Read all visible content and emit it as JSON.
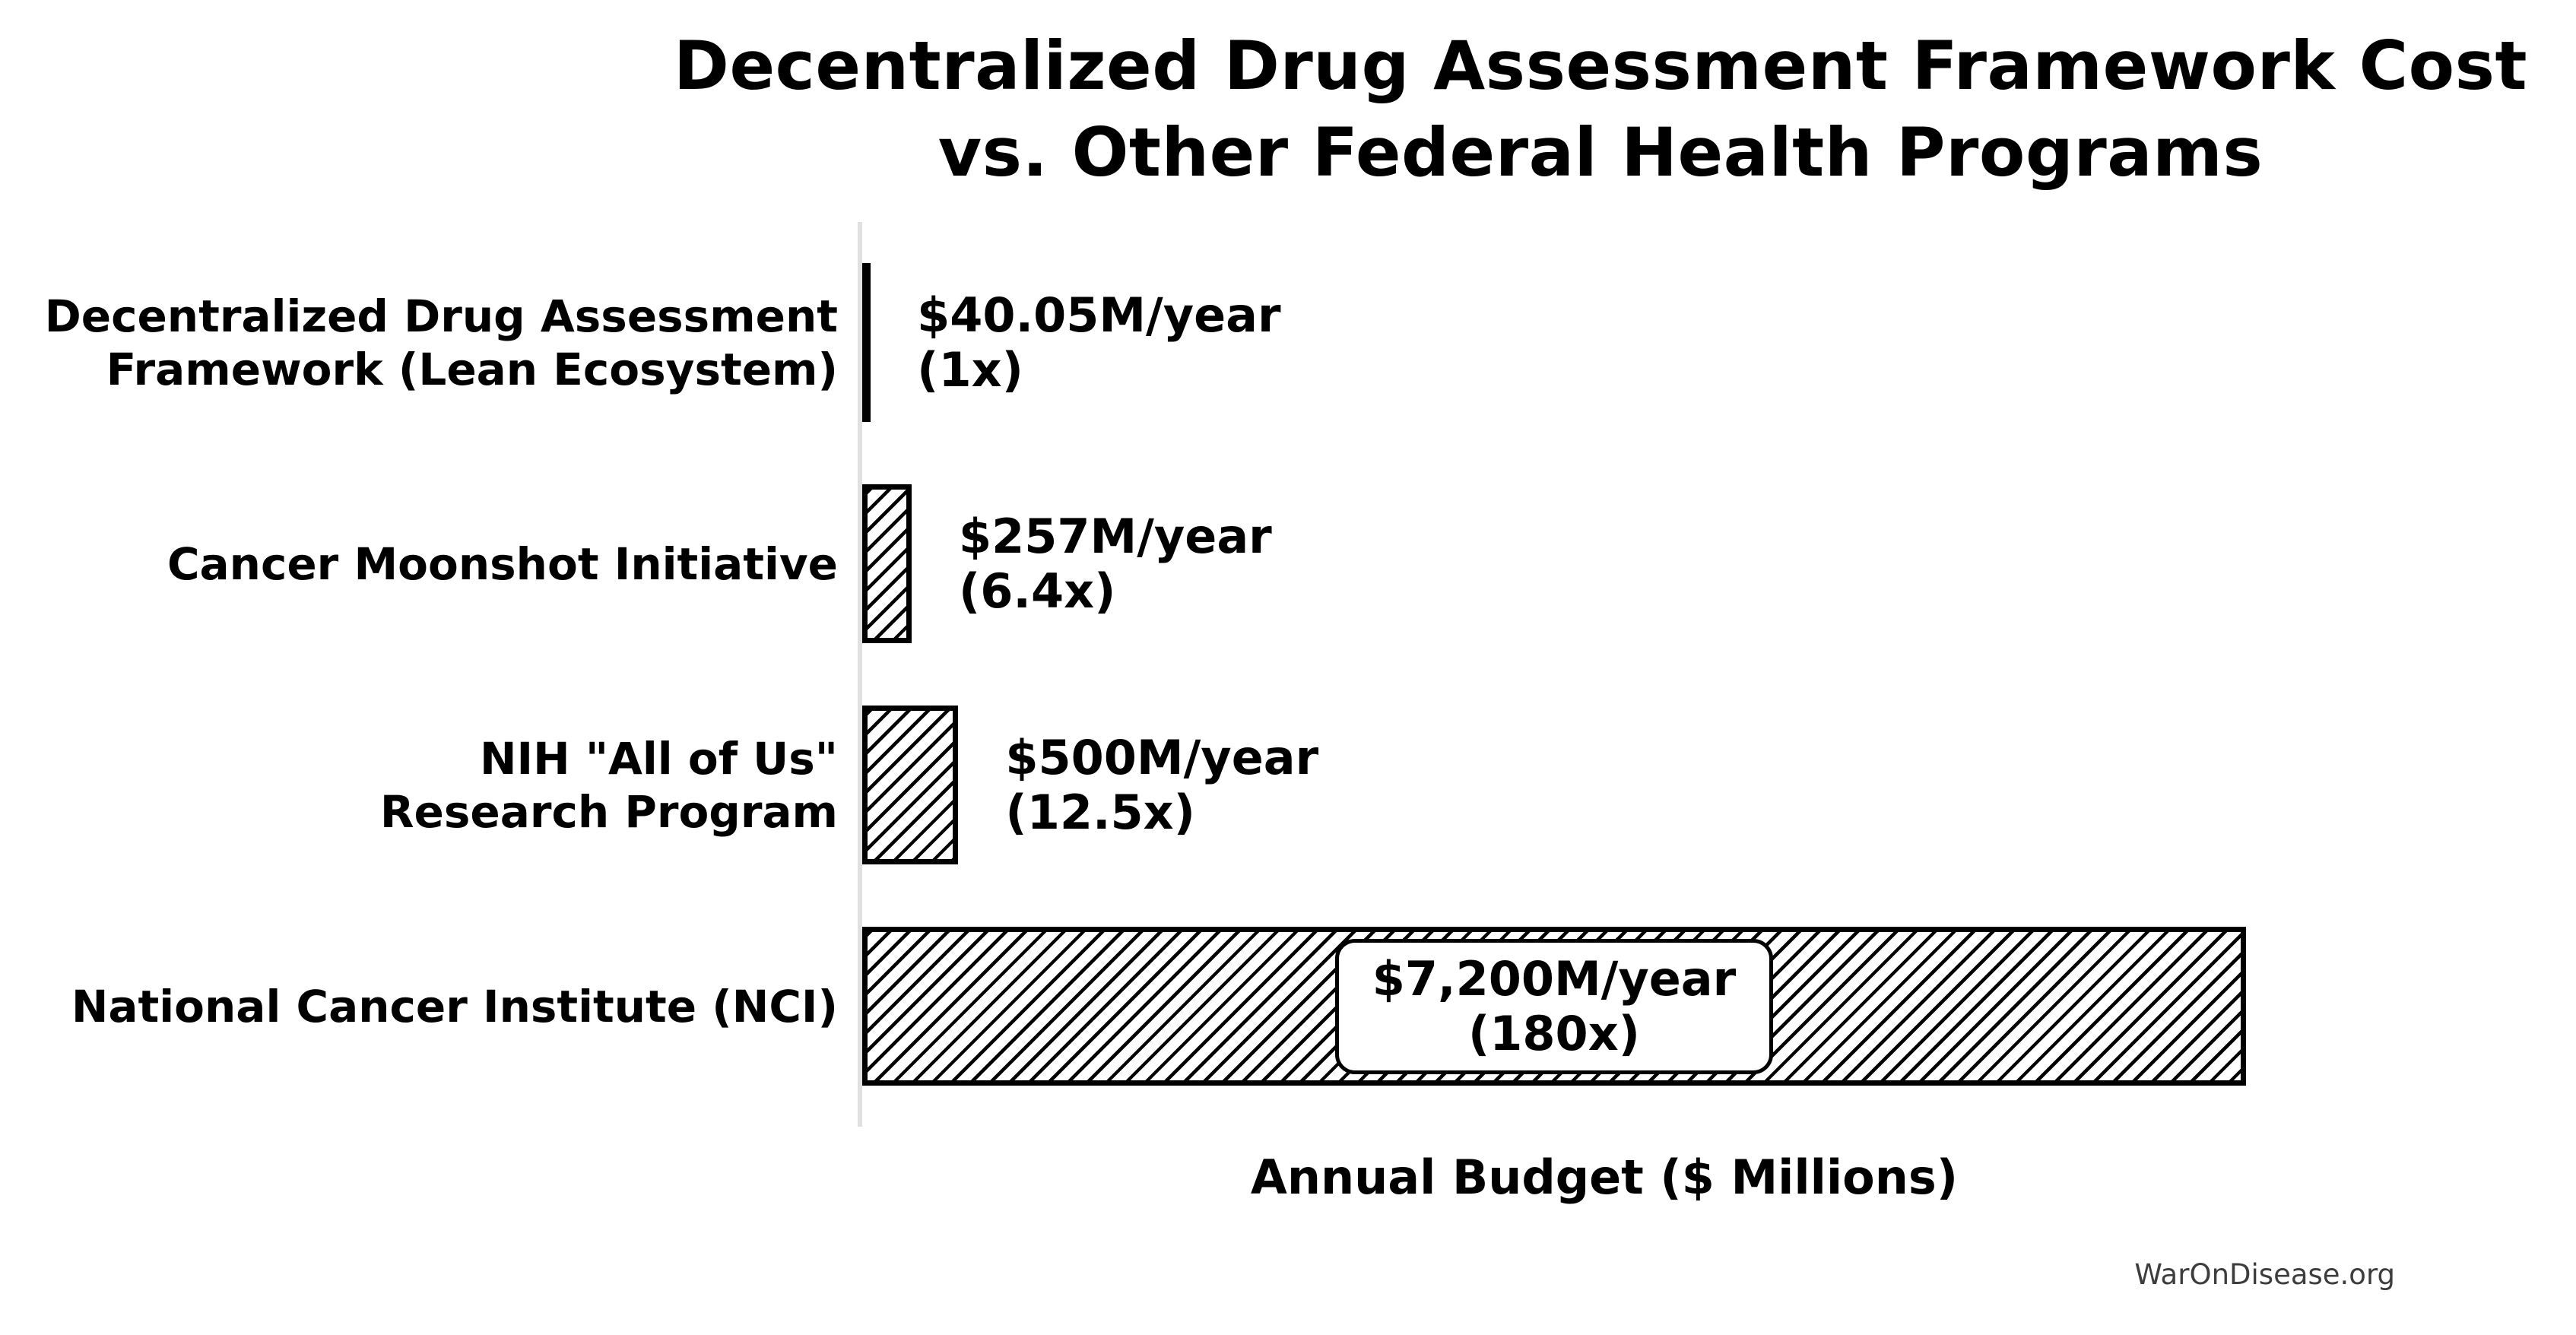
{
  "title": "Decentralized Drug Assessment Framework Cost\nvs. Other Federal Health Programs",
  "x_axis_label": "Annual Budget ($ Millions)",
  "watermark": "WarOnDisease.org",
  "colors": {
    "background": "#ffffff",
    "bar_edge": "#000000",
    "bar_fill": "#ffffff",
    "hatch": "#000000",
    "axis_spine": "#e0e0e0",
    "text": "#000000",
    "watermark_text": "#3d3d3d"
  },
  "chart_data": {
    "type": "bar",
    "orientation": "horizontal",
    "title": "Decentralized Drug Assessment Framework Cost vs. Other Federal Health Programs",
    "xlabel": "Annual Budget ($ Millions)",
    "ylabel": "",
    "xlim": [
      0,
      7860
    ],
    "grid": false,
    "legend": false,
    "categories": [
      "Decentralized Drug Assessment Framework (Lean Ecosystem)",
      "Cancer Moonshot Initiative",
      "NIH \"All of Us\" Research Program",
      "National Cancer Institute (NCI)"
    ],
    "values": [
      40.05,
      257,
      500,
      7200
    ],
    "bars": [
      {
        "category": "Decentralized Drug Assessment\nFramework (Lean Ecosystem)",
        "value": 40.05,
        "value_label": "$40.05M/year\n(1x)",
        "multiplier": "1x",
        "label_position": "outside",
        "style": "solid"
      },
      {
        "category": "Cancer Moonshot Initiative",
        "value": 257,
        "value_label": "$257M/year\n(6.4x)",
        "multiplier": "6.4x",
        "label_position": "outside",
        "style": "hatched"
      },
      {
        "category": "NIH \"All of Us\"\nResearch Program",
        "value": 500,
        "value_label": "$500M/year\n(12.5x)",
        "multiplier": "12.5x",
        "label_position": "outside",
        "style": "hatched"
      },
      {
        "category": "National Cancer Institute (NCI)",
        "value": 7200,
        "value_label": "$7,200M/year\n(180x)",
        "multiplier": "180x",
        "label_position": "inside",
        "style": "hatched"
      }
    ]
  }
}
